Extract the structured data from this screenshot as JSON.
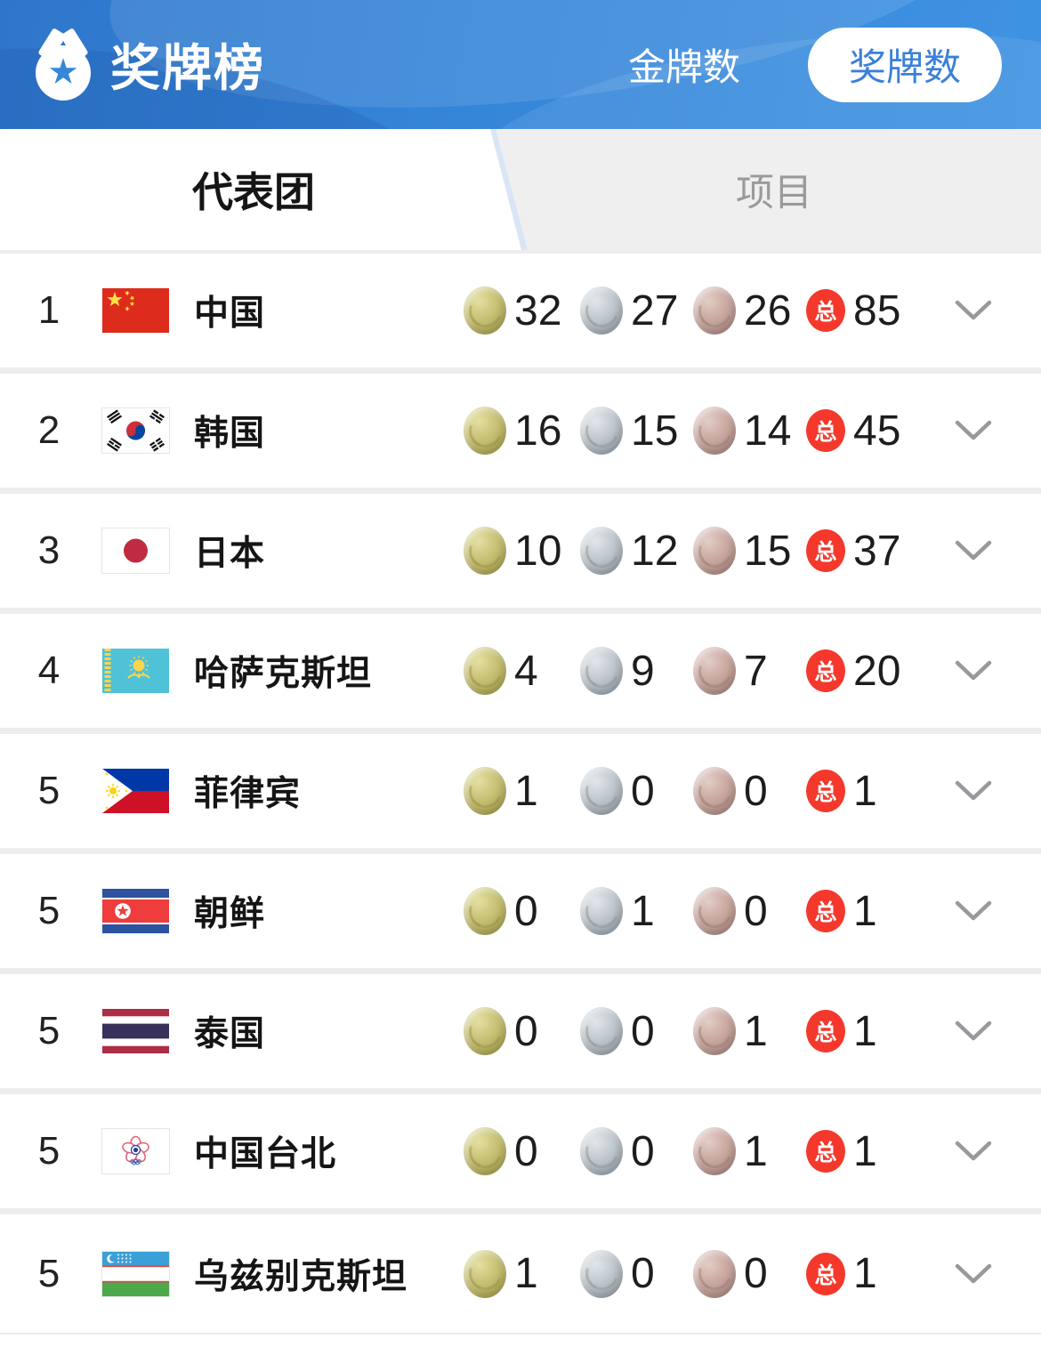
{
  "header": {
    "title": "奖牌榜",
    "logo_icon": "medal-with-star",
    "tab_gold": "金牌数",
    "tab_medal": "奖牌数",
    "selected_tab": "奖牌数"
  },
  "subtabs": {
    "delegation": "代表团",
    "event": "项目",
    "selected": "代表团"
  },
  "labels": {
    "total_badge": "总"
  },
  "icons": {
    "logo": "medal-star-icon",
    "expand": "chevron-down-icon"
  },
  "colors": {
    "header_blue_start": "#2e76cb",
    "header_blue_end": "#3f93e2",
    "selected_pill_text": "#3a80d9",
    "inactive_tab_bg": "#efeff0",
    "inactive_tab_text": "#9a9a9a",
    "separator": "#ededee",
    "total_red": "#f5382c",
    "gold": "#b9b35e",
    "silver": "#a8b0b8",
    "bronze": "#b3918a"
  },
  "rows": [
    {
      "rank": "1",
      "country": "中国",
      "flag": "cn",
      "gold": "32",
      "silver": "27",
      "bronze": "26",
      "total": "85"
    },
    {
      "rank": "2",
      "country": "韩国",
      "flag": "kr",
      "gold": "16",
      "silver": "15",
      "bronze": "14",
      "total": "45"
    },
    {
      "rank": "3",
      "country": "日本",
      "flag": "jp",
      "gold": "10",
      "silver": "12",
      "bronze": "15",
      "total": "37"
    },
    {
      "rank": "4",
      "country": "哈萨克斯坦",
      "flag": "kz",
      "gold": "4",
      "silver": "9",
      "bronze": "7",
      "total": "20"
    },
    {
      "rank": "5",
      "country": "菲律宾",
      "flag": "ph",
      "gold": "1",
      "silver": "0",
      "bronze": "0",
      "total": "1"
    },
    {
      "rank": "5",
      "country": "朝鲜",
      "flag": "kp",
      "gold": "0",
      "silver": "1",
      "bronze": "0",
      "total": "1"
    },
    {
      "rank": "5",
      "country": "泰国",
      "flag": "th",
      "gold": "0",
      "silver": "0",
      "bronze": "1",
      "total": "1"
    },
    {
      "rank": "5",
      "country": "中国台北",
      "flag": "tw",
      "gold": "0",
      "silver": "0",
      "bronze": "1",
      "total": "1"
    },
    {
      "rank": "5",
      "country": "乌兹别克斯坦",
      "flag": "uz",
      "gold": "1",
      "silver": "0",
      "bronze": "0",
      "total": "1"
    }
  ]
}
